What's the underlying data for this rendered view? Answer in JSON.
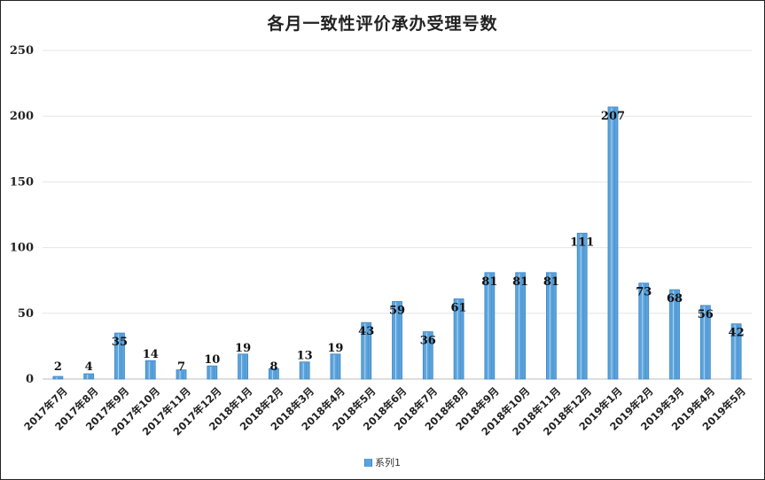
{
  "chart_data": {
    "type": "bar",
    "title": "各月一致性评价承办受理号数",
    "categories": [
      "2017年7月",
      "2017年8月",
      "2017年9月",
      "2017年10月",
      "2017年11月",
      "2017年12月",
      "2018年1月",
      "2018年2月",
      "2018年3月",
      "2018年4月",
      "2018年5月",
      "2018年6月",
      "2018年7月",
      "2018年8月",
      "2018年9月",
      "2018年10月",
      "2018年11月",
      "2018年12月",
      "2019年1月",
      "2019年2月",
      "2019年3月",
      "2019年4月",
      "2019年5月"
    ],
    "series": [
      {
        "name": "系列1",
        "values": [
          2,
          4,
          35,
          14,
          7,
          10,
          19,
          8,
          13,
          19,
          43,
          59,
          36,
          61,
          81,
          81,
          81,
          111,
          207,
          73,
          68,
          56,
          42
        ]
      }
    ],
    "ylim": [
      0,
      250
    ],
    "yticks": [
      0,
      50,
      100,
      150,
      200,
      250
    ],
    "xlabel": "",
    "ylabel": "",
    "grid": true,
    "legend_position": "bottom",
    "data_labels": true,
    "colors": {
      "bar": "#5ba3dc",
      "bar_edge": "#3d86c4",
      "grid": "#e6e6e6"
    }
  }
}
